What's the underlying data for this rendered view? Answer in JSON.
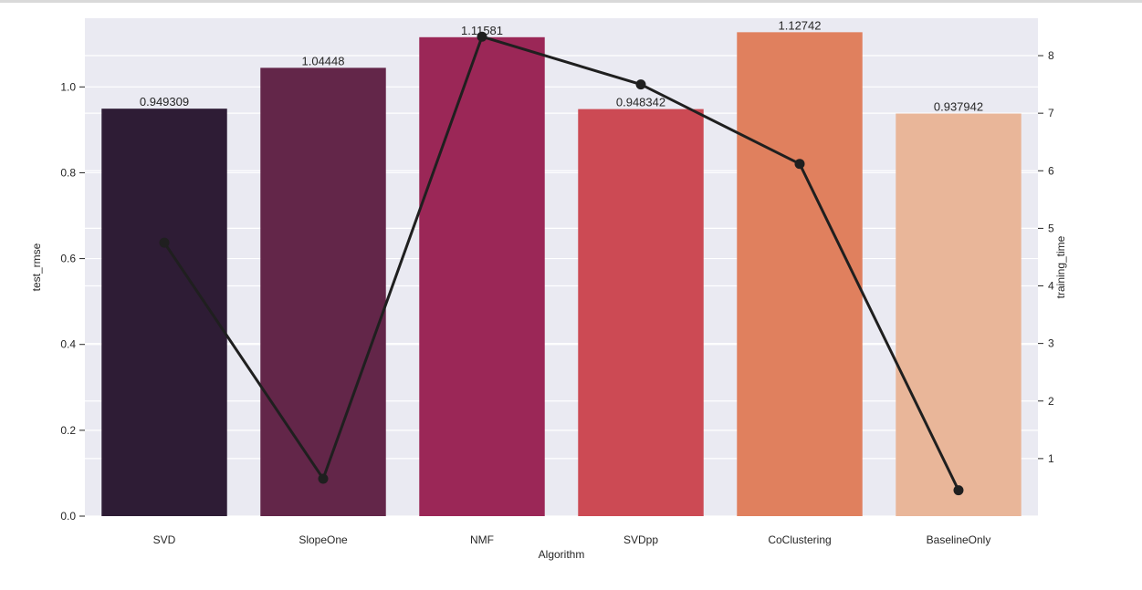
{
  "chart_data": {
    "type": "bar",
    "xlabel": "Algorithm",
    "ylabel": "test_rmse",
    "y2label": "training_time",
    "xlabel_color": "#1f1fff",
    "background": "#eaeaf2",
    "grid": true,
    "categories": [
      "SVD",
      "SlopeOne",
      "NMF",
      "SVDpp",
      "CoClustering",
      "BaselineOnly"
    ],
    "bar_values": [
      0.949309,
      1.04448,
      1.11581,
      0.948342,
      1.12742,
      0.937942
    ],
    "bar_labels": [
      "0.949309",
      "1.04448",
      "1.11581",
      "0.948342",
      "1.12742",
      "0.937942"
    ],
    "bar_colors": [
      "#2e1c35",
      "#632649",
      "#9b2757",
      "#cc4a54",
      "#e0805e",
      "#e9b699"
    ],
    "line_series": {
      "axis": "secondary",
      "color": "#1f1f1f",
      "values": [
        4.75,
        0.65,
        8.33,
        7.5,
        6.12,
        0.45
      ]
    },
    "ylim": [
      0,
      1.16
    ],
    "yticks": [
      0.0,
      0.2,
      0.4,
      0.6,
      0.8,
      1.0
    ],
    "ytick_labels": [
      "0.0",
      "0.2",
      "0.4",
      "0.6",
      "0.8",
      "1.0"
    ],
    "y2lim": [
      0,
      8.65
    ],
    "y2ticks": [
      1,
      2,
      3,
      4,
      5,
      6,
      7,
      8
    ],
    "y2tick_labels": [
      "1",
      "2",
      "3",
      "4",
      "5",
      "6",
      "7",
      "8"
    ]
  }
}
